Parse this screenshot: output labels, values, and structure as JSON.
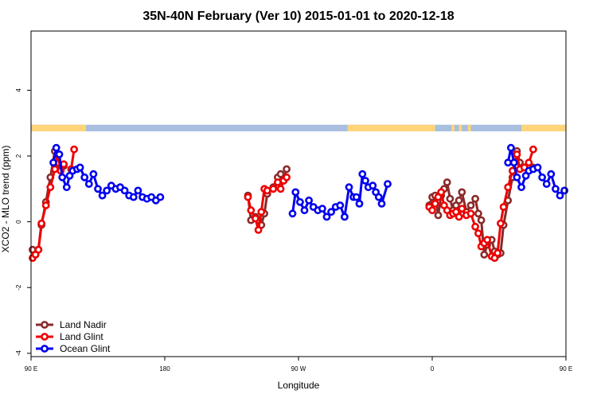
{
  "chart_data": {
    "type": "line",
    "title": "35N-40N February (Ver 10)   2015-01-01 to 2020-12-18",
    "xlabel": "Longitude",
    "ylabel": "XCO2 - MLO trend (ppm)",
    "xlim": [
      90,
      450
    ],
    "ylim": [
      -4.1,
      5.8
    ],
    "x_ticks": [
      {
        "value": 90,
        "label": "90 E"
      },
      {
        "value": 180,
        "label": "180"
      },
      {
        "value": 270,
        "label": "90 W"
      },
      {
        "value": 360,
        "label": "0"
      },
      {
        "value": 450,
        "label": "90 E"
      },
      {
        "value": 540,
        "label": "180"
      }
    ],
    "y_ticks": [
      -4,
      -2,
      0,
      2,
      4
    ],
    "land_ocean_band": {
      "y_range": [
        2.75,
        2.95
      ],
      "land_color": "#ffd57a",
      "ocean_color": "#a8bfdf",
      "land_segments": [
        [
          90,
          127
        ],
        [
          303,
          362
        ],
        [
          373,
          375
        ],
        [
          378,
          380
        ],
        [
          384,
          386
        ],
        [
          420,
          505
        ],
        [
          514,
          515
        ],
        [
          516,
          518
        ],
        [
          520,
          523
        ]
      ]
    },
    "series": [
      {
        "name": "Land Nadir",
        "color": "#8b2a2a",
        "segments": [
          [
            [
              91,
              -0.85
            ],
            [
              93,
              -1.0
            ],
            [
              95,
              -0.85
            ],
            [
              97,
              -0.1
            ],
            [
              100,
              0.6
            ],
            [
              103,
              1.35
            ],
            [
              106,
              2.15
            ],
            [
              108,
              1.8
            ],
            [
              110,
              1.65
            ],
            [
              112,
              1.7
            ]
          ],
          [
            [
              236,
              0.8
            ],
            [
              238,
              0.05
            ],
            [
              241,
              0.15
            ],
            [
              243,
              0.05
            ],
            [
              245,
              -0.1
            ],
            [
              247,
              0.25
            ],
            [
              249,
              0.85
            ],
            [
              253,
              1.05
            ],
            [
              256,
              1.35
            ],
            [
              258,
              1.45
            ],
            [
              260,
              1.25
            ],
            [
              262,
              1.6
            ]
          ],
          [
            [
              358,
              0.5
            ],
            [
              360,
              0.75
            ],
            [
              362,
              0.8
            ],
            [
              364,
              0.2
            ],
            [
              366,
              0.8
            ],
            [
              368,
              1.0
            ],
            [
              370,
              1.2
            ],
            [
              372,
              0.7
            ],
            [
              374,
              0.35
            ],
            [
              376,
              0.5
            ],
            [
              378,
              0.65
            ],
            [
              380,
              0.9
            ],
            [
              383,
              0.3
            ],
            [
              386,
              0.5
            ],
            [
              389,
              0.7
            ],
            [
              391,
              0.25
            ],
            [
              393,
              0.05
            ],
            [
              395,
              -1.0
            ],
            [
              397,
              -0.7
            ],
            [
              400,
              -0.55
            ],
            [
              402,
              -0.9
            ],
            [
              404,
              -1.0
            ],
            [
              406,
              -0.95
            ],
            [
              408,
              -0.1
            ],
            [
              411,
              0.65
            ],
            [
              414,
              1.35
            ],
            [
              417,
              2.15
            ],
            [
              419,
              1.8
            ],
            [
              422,
              1.65
            ],
            [
              425,
              1.55
            ],
            [
              428,
              1.65
            ]
          ]
        ]
      },
      {
        "name": "Land Glint",
        "color": "#ee0000",
        "segments": [
          [
            [
              91,
              -1.1
            ],
            [
              93,
              -1.0
            ],
            [
              95,
              -0.85
            ],
            [
              97,
              -0.05
            ],
            [
              100,
              0.5
            ],
            [
              103,
              1.05
            ],
            [
              106,
              1.6
            ],
            [
              108,
              2.05
            ],
            [
              110,
              1.55
            ],
            [
              112,
              1.75
            ]
          ],
          [
            [
              117,
              1.6
            ],
            [
              119,
              2.2
            ]
          ],
          [
            [
              236,
              0.75
            ],
            [
              238,
              0.35
            ],
            [
              241,
              0.1
            ],
            [
              243,
              -0.25
            ],
            [
              245,
              0.3
            ],
            [
              247,
              1.0
            ],
            [
              249,
              0.95
            ],
            [
              253,
              1.0
            ],
            [
              256,
              1.2
            ],
            [
              258,
              1.0
            ],
            [
              260,
              1.25
            ],
            [
              262,
              1.35
            ]
          ],
          [
            [
              358,
              0.45
            ],
            [
              360,
              0.35
            ],
            [
              362,
              0.55
            ],
            [
              364,
              0.75
            ],
            [
              366,
              0.9
            ],
            [
              368,
              0.5
            ],
            [
              370,
              0.35
            ],
            [
              372,
              0.2
            ],
            [
              374,
              0.25
            ],
            [
              376,
              0.3
            ],
            [
              378,
              0.15
            ],
            [
              380,
              0.4
            ],
            [
              383,
              0.2
            ],
            [
              386,
              0.25
            ],
            [
              389,
              -0.15
            ],
            [
              391,
              -0.35
            ],
            [
              393,
              -0.75
            ],
            [
              395,
              -0.65
            ],
            [
              397,
              -0.55
            ],
            [
              400,
              -1.05
            ],
            [
              402,
              -1.1
            ],
            [
              404,
              -0.95
            ],
            [
              406,
              -0.05
            ],
            [
              408,
              0.45
            ],
            [
              411,
              1.05
            ],
            [
              414,
              1.55
            ],
            [
              417,
              2.05
            ],
            [
              419,
              1.6
            ],
            [
              422,
              1.65
            ],
            [
              425,
              1.8
            ],
            [
              428,
              2.2
            ]
          ]
        ]
      },
      {
        "name": "Ocean Glint",
        "color": "#0000ee",
        "segments": [
          [
            [
              105,
              1.8
            ],
            [
              107,
              2.25
            ],
            [
              109,
              2.05
            ],
            [
              111,
              1.35
            ],
            [
              114,
              1.05
            ],
            [
              116,
              1.4
            ],
            [
              118,
              1.55
            ],
            [
              121,
              1.6
            ],
            [
              123,
              1.65
            ],
            [
              126,
              1.35
            ],
            [
              129,
              1.15
            ],
            [
              132,
              1.45
            ],
            [
              135,
              1.0
            ],
            [
              138,
              0.8
            ],
            [
              141,
              0.95
            ],
            [
              144,
              1.1
            ],
            [
              147,
              1.0
            ],
            [
              150,
              1.05
            ],
            [
              153,
              0.95
            ],
            [
              156,
              0.8
            ],
            [
              159,
              0.75
            ],
            [
              162,
              0.95
            ],
            [
              165,
              0.75
            ],
            [
              168,
              0.7
            ],
            [
              171,
              0.75
            ],
            [
              174,
              0.65
            ],
            [
              177,
              0.75
            ]
          ],
          [
            [
              266,
              0.25
            ],
            [
              268,
              0.9
            ],
            [
              271,
              0.6
            ],
            [
              274,
              0.35
            ],
            [
              277,
              0.65
            ],
            [
              280,
              0.45
            ],
            [
              283,
              0.35
            ],
            [
              286,
              0.4
            ],
            [
              289,
              0.15
            ],
            [
              292,
              0.3
            ],
            [
              295,
              0.45
            ],
            [
              298,
              0.5
            ],
            [
              301,
              0.15
            ],
            [
              304,
              1.05
            ],
            [
              307,
              0.75
            ],
            [
              309,
              0.75
            ],
            [
              311,
              0.55
            ],
            [
              313,
              1.45
            ],
            [
              315,
              1.25
            ],
            [
              317,
              1.05
            ],
            [
              320,
              1.1
            ],
            [
              322,
              0.9
            ],
            [
              324,
              0.75
            ],
            [
              326,
              0.55
            ],
            [
              330,
              1.15
            ]
          ],
          [
            [
              411,
              1.8
            ],
            [
              413,
              2.25
            ],
            [
              415,
              1.8
            ],
            [
              417,
              1.35
            ],
            [
              420,
              1.05
            ],
            [
              423,
              1.4
            ],
            [
              425,
              1.55
            ],
            [
              428,
              1.6
            ],
            [
              431,
              1.65
            ],
            [
              434,
              1.35
            ],
            [
              437,
              1.15
            ],
            [
              440,
              1.45
            ],
            [
              443,
              1.0
            ],
            [
              446,
              0.8
            ],
            [
              449,
              0.95
            ]
          ]
        ]
      }
    ],
    "legend": {
      "position": "bottom-left",
      "entries": [
        "Land Nadir",
        "Land Glint",
        "Ocean Glint"
      ]
    }
  }
}
